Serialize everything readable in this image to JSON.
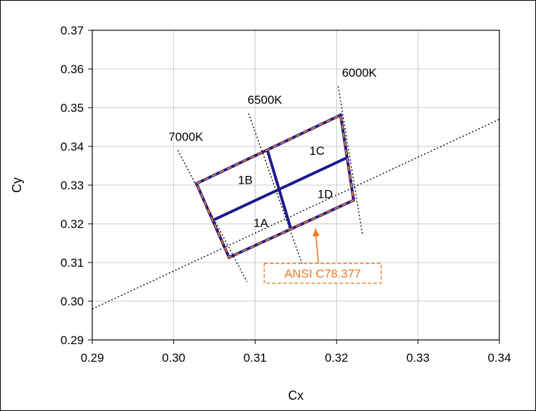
{
  "chart_data": {
    "type": "line",
    "title": "",
    "xlabel": "Cx",
    "ylabel": "Cy",
    "xlim": [
      0.29,
      0.34
    ],
    "ylim": [
      0.29,
      0.37
    ],
    "xticks": [
      "0.29",
      "0.30",
      "0.31",
      "0.32",
      "0.33",
      "0.34"
    ],
    "yticks": [
      "0.29",
      "0.30",
      "0.31",
      "0.32",
      "0.33",
      "0.34",
      "0.35",
      "0.36",
      "0.37"
    ],
    "grid": true,
    "legend": "none",
    "colors": {
      "bins": "#1a1a8c",
      "ansi": "#f07820",
      "guide": "#000000"
    },
    "planckian_locus": [
      [
        0.29,
        0.298
      ],
      [
        0.34,
        0.347
      ]
    ],
    "isotherms": [
      {
        "name": "7000K",
        "points": [
          [
            0.3005,
            0.339
          ],
          [
            0.309,
            0.305
          ]
        ],
        "label_at": [
          0.3015,
          0.3415
        ]
      },
      {
        "name": "6500K",
        "points": [
          [
            0.3092,
            0.3485
          ],
          [
            0.3158,
            0.3095
          ]
        ],
        "label_at": [
          0.3112,
          0.351
        ]
      },
      {
        "name": "6000K",
        "points": [
          [
            0.3202,
            0.3555
          ],
          [
            0.3232,
            0.317
          ]
        ],
        "label_at": [
          0.3228,
          0.358
        ]
      }
    ],
    "ansi_quadrangle": [
      [
        0.3028,
        0.3304
      ],
      [
        0.3205,
        0.3481
      ],
      [
        0.3221,
        0.3261
      ],
      [
        0.3068,
        0.3113
      ]
    ],
    "bin_lines": [
      [
        [
          0.3048,
          0.3209
        ],
        [
          0.3213,
          0.3371
        ]
      ],
      [
        [
          0.3115,
          0.3391
        ],
        [
          0.3144,
          0.3186
        ]
      ]
    ],
    "bins": [
      {
        "name": "1A",
        "at": [
          0.3107,
          0.3192
        ]
      },
      {
        "name": "1B",
        "at": [
          0.3088,
          0.3303
        ]
      },
      {
        "name": "1C",
        "at": [
          0.3176,
          0.3378
        ]
      },
      {
        "name": "1D",
        "at": [
          0.3186,
          0.3266
        ]
      }
    ],
    "annotation": {
      "text": "ANSI C78.377",
      "arrow_tip": [
        0.3174,
        0.3188
      ],
      "box_center": [
        0.3183,
        0.3072
      ]
    }
  }
}
